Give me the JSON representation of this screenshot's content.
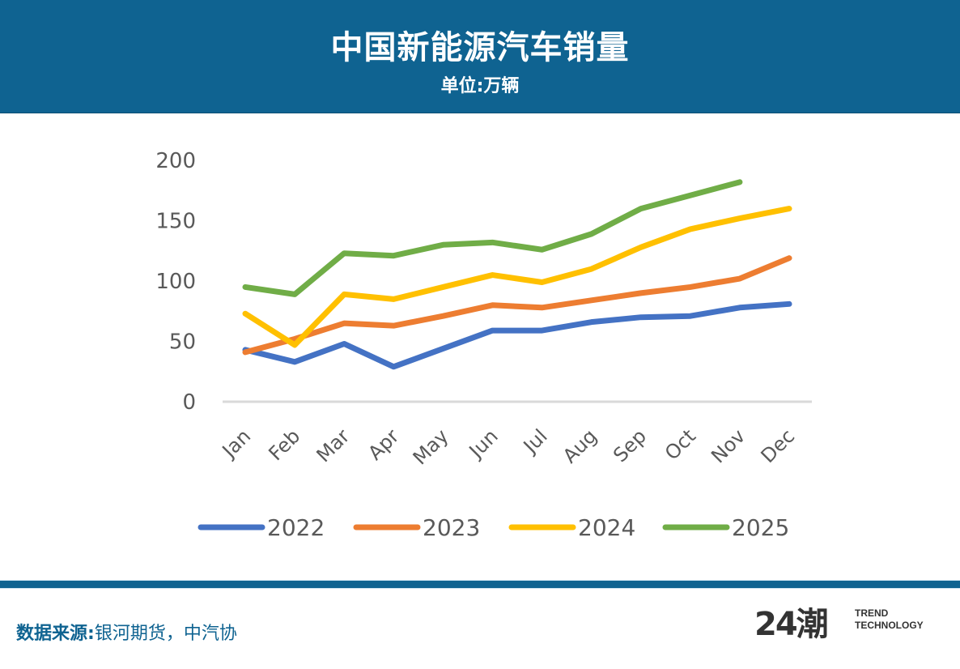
{
  "header": {
    "title": "中国新能源汽车销量",
    "subtitle": "单位:万辆"
  },
  "colors": {
    "header_bg": "#0f6391",
    "series_2022": "#4472c4",
    "series_2023": "#ed7d31",
    "series_2024": "#ffc000",
    "series_2025": "#70ad47"
  },
  "chart_data": {
    "type": "line",
    "title": "中国新能源汽车销量",
    "subtitle": "单位:万辆",
    "xlabel": "",
    "ylabel": "",
    "categories": [
      "Jan",
      "Feb",
      "Mar",
      "Apr",
      "May",
      "Jun",
      "Jul",
      "Aug",
      "Sep",
      "Oct",
      "Nov",
      "Dec"
    ],
    "yticks": [
      "0",
      "50",
      "100",
      "150",
      "200"
    ],
    "ylim": [
      0,
      200
    ],
    "grid": false,
    "legend_position": "bottom",
    "series": [
      {
        "name": "2022",
        "color": "#4472c4",
        "values": [
          43,
          33,
          48,
          29,
          44,
          59,
          59,
          66,
          70,
          71,
          78,
          81
        ]
      },
      {
        "name": "2023",
        "color": "#ed7d31",
        "values": [
          41,
          52,
          65,
          63,
          71,
          80,
          78,
          84,
          90,
          95,
          102,
          119
        ]
      },
      {
        "name": "2024",
        "color": "#ffc000",
        "values": [
          73,
          47,
          89,
          85,
          95,
          105,
          99,
          110,
          128,
          143,
          152,
          160
        ]
      },
      {
        "name": "2025",
        "color": "#70ad47",
        "values": [
          95,
          89,
          123,
          121,
          130,
          132,
          126,
          139,
          160,
          171,
          182,
          null
        ]
      }
    ]
  },
  "footer": {
    "source_label": "数据来源:",
    "source_text": "银河期货，中汽协",
    "logo_mark": "24潮",
    "logo_line1": "TREND",
    "logo_line2": "TECHNOLOGY"
  }
}
